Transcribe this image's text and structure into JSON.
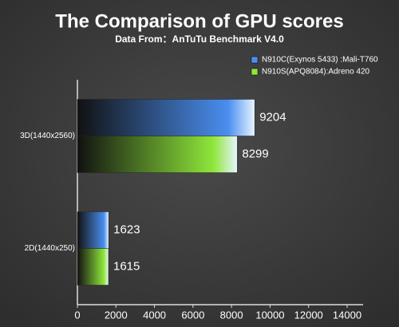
{
  "chart_data": {
    "type": "hbar",
    "title": "The Comparison of GPU scores",
    "subtitle": "Data From：AnTuTu Benchmark V4.0",
    "categories": [
      "3D(1440x2560)",
      "2D(1440x250)"
    ],
    "series": [
      {
        "name": "N910C(Exynos 5433) :Mali-T760",
        "color": "#4a8ef0",
        "values": [
          9204,
          1623
        ]
      },
      {
        "name": "N910S(APQ8084):Adreno 420",
        "color": "#8ee63a",
        "values": [
          8299,
          1615
        ]
      }
    ],
    "xlim": [
      0,
      14000
    ],
    "xticks": [
      0,
      2000,
      4000,
      6000,
      8000,
      10000,
      12000,
      14000
    ],
    "legend": "top-right"
  }
}
